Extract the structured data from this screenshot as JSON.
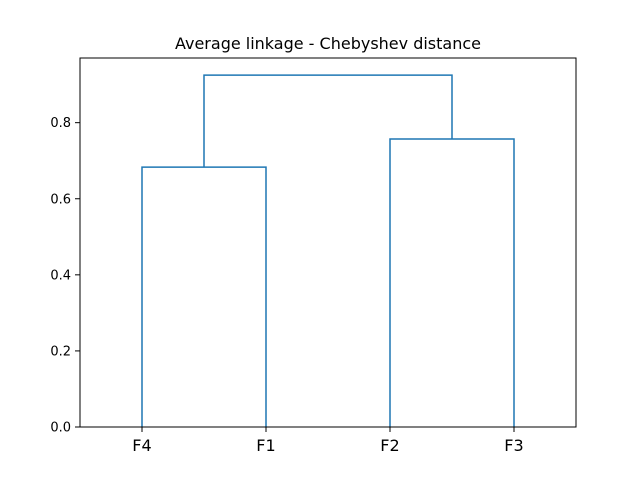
{
  "chart_data": {
    "type": "dendrogram",
    "title": "Average linkage - Chebyshev distance",
    "xlabel": "",
    "ylabel": "",
    "leaves": [
      "F4",
      "F1",
      "F2",
      "F3"
    ],
    "merges": [
      {
        "left": "F4",
        "right": "F1",
        "height": 0.683
      },
      {
        "left": "F2",
        "right": "F3",
        "height": 0.757
      },
      {
        "left": "F4+F1",
        "right": "F2+F3",
        "height": 0.925
      }
    ],
    "yticks": [
      0.0,
      0.2,
      0.4,
      0.6,
      0.8
    ],
    "ytick_labels": [
      "0.0",
      "0.2",
      "0.4",
      "0.6",
      "0.8"
    ],
    "ylim": [
      0,
      0.97
    ],
    "grid": false,
    "legend": "none",
    "line_color": "#1f77b4"
  }
}
